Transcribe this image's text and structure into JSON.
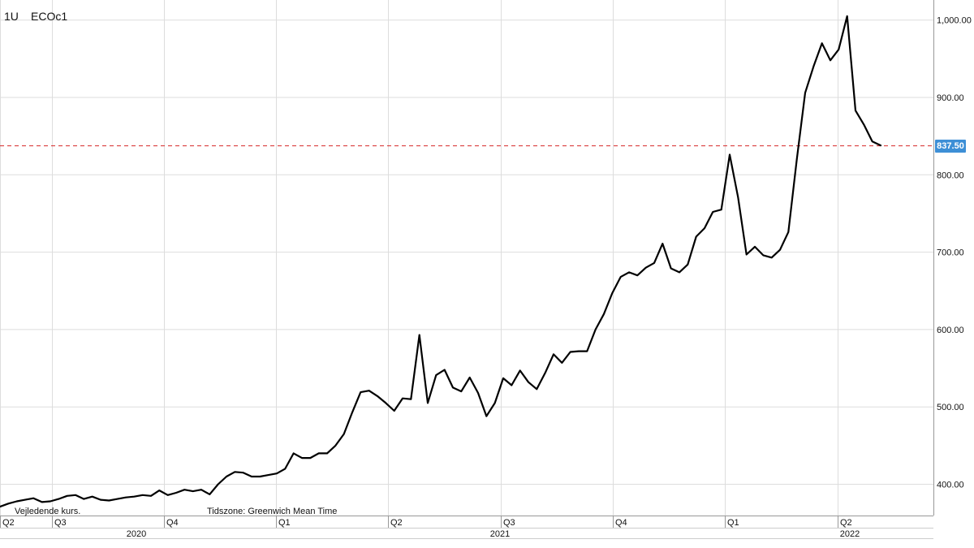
{
  "header": {
    "interval": "1U",
    "symbol": "ECOc1"
  },
  "notes": {
    "indicative": "Vejledende kurs.",
    "timezone": "Tidszone: Greenwich Mean Time"
  },
  "last_price_label": "837.50",
  "colors": {
    "line": "#000000",
    "grid": "#dddddd",
    "last_price_line": "#d62728",
    "last_price_badge": "#3d8fd6"
  },
  "chart_data": {
    "type": "line",
    "title": "",
    "xlabel": "",
    "ylabel": "",
    "ylim": [
      355,
      1020
    ],
    "y_ticks": [
      "400.00",
      "500.00",
      "600.00",
      "700.00",
      "800.00",
      "900.00",
      "1,000.00"
    ],
    "x_quarter_ticks": [
      "Q2",
      "Q3",
      "Q4",
      "Q1",
      "Q2",
      "Q3",
      "Q4",
      "Q1",
      "Q2"
    ],
    "x_year_labels": [
      "2020",
      "2021",
      "2022"
    ],
    "grid": true,
    "last_price": 837.5,
    "series": [
      {
        "values": [
          371,
          375,
          378,
          380,
          382,
          377,
          378,
          381,
          385,
          386,
          381,
          384,
          380,
          379,
          381,
          383,
          384,
          386,
          385,
          392,
          386,
          389,
          393,
          391,
          393,
          387,
          400,
          410,
          416,
          415,
          410,
          410,
          412,
          414,
          420,
          440,
          434,
          434,
          440,
          440,
          450,
          465,
          493,
          519,
          521,
          514,
          505,
          495,
          511,
          510,
          593,
          505,
          541,
          548,
          525,
          520,
          538,
          518,
          488,
          505,
          537,
          528,
          547,
          532,
          523,
          544,
          568,
          557,
          571,
          572,
          572,
          600,
          620,
          647,
          668,
          674,
          670,
          680,
          686,
          711,
          679,
          674,
          684,
          720,
          731,
          752,
          755,
          826,
          771,
          697,
          707,
          696,
          693,
          703,
          726,
          820,
          906,
          940,
          970,
          948,
          962,
          1005,
          883,
          865,
          843,
          838
        ]
      }
    ]
  }
}
